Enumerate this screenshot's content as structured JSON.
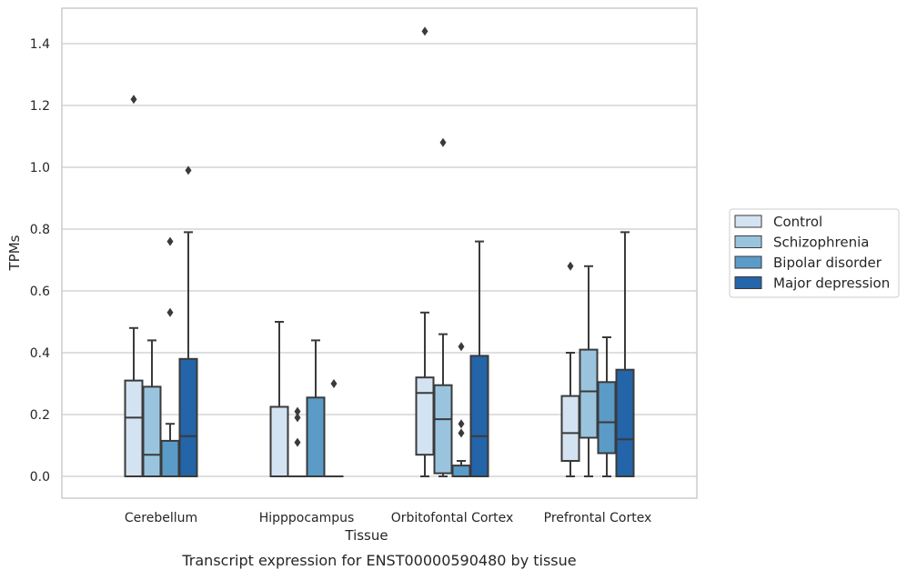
{
  "chart_data": {
    "type": "boxplot",
    "title": "",
    "caption": "Transcript expression for ENST00000590480 by tissue",
    "xlabel": "Tissue",
    "ylabel": "TPMs",
    "ylim": [
      -0.07,
      1.52
    ],
    "yticks": [
      0.0,
      0.2,
      0.4,
      0.6,
      0.8,
      1.0,
      1.2,
      1.4
    ],
    "yticklabels": [
      "0.0",
      "0.2",
      "0.4",
      "0.6",
      "0.8",
      "1.0",
      "1.2",
      "1.4"
    ],
    "grid": "horizontal",
    "legend_position": "right",
    "categories": [
      "Cerebellum",
      "Hipppocampus",
      "Orbitofontal Cortex",
      "Prefrontal Cortex"
    ],
    "series": [
      {
        "name": "Control",
        "color": "#d3e3f1",
        "boxes": [
          {
            "whislo": 0.0,
            "q1": 0.0,
            "med": 0.19,
            "q3": 0.31,
            "whishi": 0.48,
            "fliers": [
              1.22
            ]
          },
          {
            "whislo": 0.0,
            "q1": 0.0,
            "med": 0.0,
            "q3": 0.225,
            "whishi": 0.5,
            "fliers": []
          },
          {
            "whislo": 0.0,
            "q1": 0.07,
            "med": 0.27,
            "q3": 0.32,
            "whishi": 0.53,
            "fliers": [
              1.44
            ]
          },
          {
            "whislo": 0.0,
            "q1": 0.05,
            "med": 0.14,
            "q3": 0.26,
            "whishi": 0.4,
            "fliers": [
              0.68
            ]
          }
        ]
      },
      {
        "name": "Schizophrenia",
        "color": "#9ac4de",
        "boxes": [
          {
            "whislo": 0.0,
            "q1": 0.0,
            "med": 0.07,
            "q3": 0.29,
            "whishi": 0.44,
            "fliers": []
          },
          {
            "whislo": 0.0,
            "q1": 0.0,
            "med": 0.0,
            "q3": 0.0,
            "whishi": 0.0,
            "fliers": [
              0.21,
              0.19,
              0.11
            ]
          },
          {
            "whislo": 0.0,
            "q1": 0.01,
            "med": 0.185,
            "q3": 0.295,
            "whishi": 0.46,
            "fliers": [
              1.08
            ]
          },
          {
            "whislo": 0.0,
            "q1": 0.125,
            "med": 0.275,
            "q3": 0.41,
            "whishi": 0.68,
            "fliers": []
          }
        ]
      },
      {
        "name": "Bipolar disorder",
        "color": "#5a9bc8",
        "boxes": [
          {
            "whislo": 0.0,
            "q1": 0.0,
            "med": 0.0,
            "q3": 0.115,
            "whishi": 0.17,
            "fliers": [
              0.76,
              0.53
            ]
          },
          {
            "whislo": 0.0,
            "q1": 0.0,
            "med": 0.0,
            "q3": 0.255,
            "whishi": 0.44,
            "fliers": []
          },
          {
            "whislo": 0.0,
            "q1": 0.0,
            "med": 0.0,
            "q3": 0.035,
            "whishi": 0.05,
            "fliers": [
              0.42,
              0.17,
              0.14
            ]
          },
          {
            "whislo": 0.0,
            "q1": 0.075,
            "med": 0.175,
            "q3": 0.305,
            "whishi": 0.45,
            "fliers": []
          }
        ]
      },
      {
        "name": "Major depression",
        "color": "#2464a8",
        "boxes": [
          {
            "whislo": 0.0,
            "q1": 0.0,
            "med": 0.13,
            "q3": 0.38,
            "whishi": 0.79,
            "fliers": [
              0.99
            ]
          },
          {
            "whislo": 0.0,
            "q1": 0.0,
            "med": 0.0,
            "q3": 0.0,
            "whishi": 0.0,
            "fliers": [
              0.3
            ]
          },
          {
            "whislo": 0.0,
            "q1": 0.0,
            "med": 0.13,
            "q3": 0.39,
            "whishi": 0.76,
            "fliers": []
          },
          {
            "whislo": 0.0,
            "q1": 0.0,
            "med": 0.12,
            "q3": 0.345,
            "whishi": 0.79,
            "fliers": []
          }
        ]
      }
    ]
  }
}
